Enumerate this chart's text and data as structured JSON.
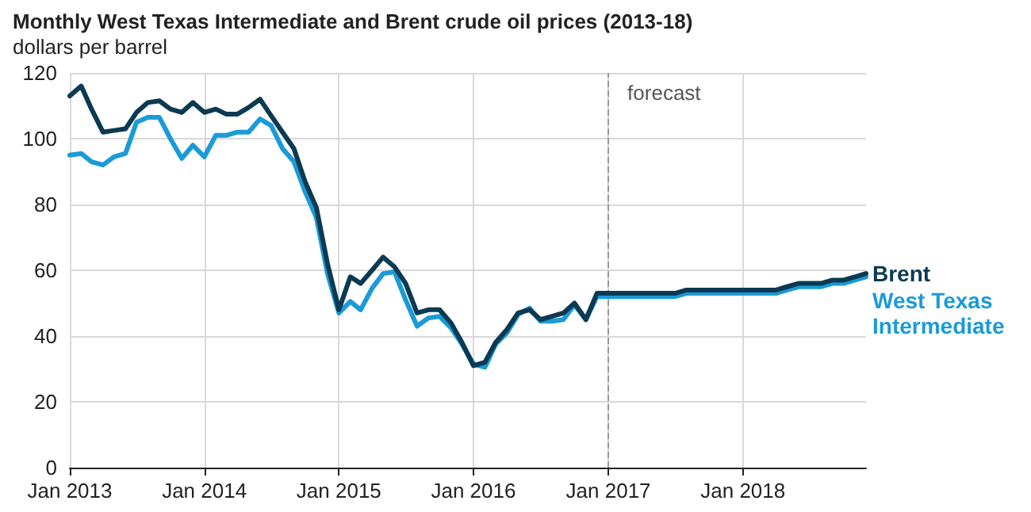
{
  "chart_data": {
    "type": "line",
    "title": "Monthly West Texas Intermediate and Brent crude oil prices (2013-18)",
    "subtitle": "dollars per barrel",
    "x": [
      "2013-01",
      "2013-02",
      "2013-03",
      "2013-04",
      "2013-05",
      "2013-06",
      "2013-07",
      "2013-08",
      "2013-09",
      "2013-10",
      "2013-11",
      "2013-12",
      "2014-01",
      "2014-02",
      "2014-03",
      "2014-04",
      "2014-05",
      "2014-06",
      "2014-07",
      "2014-08",
      "2014-09",
      "2014-10",
      "2014-11",
      "2014-12",
      "2015-01",
      "2015-02",
      "2015-03",
      "2015-04",
      "2015-05",
      "2015-06",
      "2015-07",
      "2015-08",
      "2015-09",
      "2015-10",
      "2015-11",
      "2015-12",
      "2016-01",
      "2016-02",
      "2016-03",
      "2016-04",
      "2016-05",
      "2016-06",
      "2016-07",
      "2016-08",
      "2016-09",
      "2016-10",
      "2016-11",
      "2016-12",
      "2017-01",
      "2017-02",
      "2017-03",
      "2017-04",
      "2017-05",
      "2017-06",
      "2017-07",
      "2017-08",
      "2017-09",
      "2017-10",
      "2017-11",
      "2017-12",
      "2018-01",
      "2018-02",
      "2018-03",
      "2018-04",
      "2018-05",
      "2018-06",
      "2018-07",
      "2018-08",
      "2018-09",
      "2018-10",
      "2018-11",
      "2018-12"
    ],
    "series": [
      {
        "name": "Brent",
        "color": "#0b3a52",
        "values": [
          113,
          116,
          109,
          102,
          102.5,
          103,
          108,
          111,
          111.5,
          109,
          108,
          111,
          108,
          109,
          107.5,
          107.5,
          109.5,
          112,
          107,
          102,
          97,
          87,
          79,
          62,
          48,
          58,
          56,
          60,
          64,
          61,
          56,
          47,
          48,
          48,
          44,
          38,
          31,
          32,
          38,
          42,
          47,
          48,
          45,
          46,
          47,
          50,
          45,
          53,
          53,
          53,
          53,
          53,
          53,
          53,
          53,
          54,
          54,
          54,
          54,
          54,
          54,
          54,
          54,
          54,
          55,
          56,
          56,
          56,
          57,
          57,
          58,
          59
        ]
      },
      {
        "name": "West Texas Intermediate",
        "color": "#1a9bd7",
        "values": [
          95,
          95.5,
          93,
          92,
          94.5,
          95.5,
          105,
          106.5,
          106.5,
          100,
          94,
          98,
          94.5,
          101,
          101,
          102,
          102,
          106,
          104,
          97,
          93,
          84,
          76,
          59,
          47,
          50.5,
          48,
          54.5,
          59,
          59.5,
          51,
          43,
          45.5,
          46,
          42.5,
          37.5,
          31.5,
          30.5,
          37.5,
          41,
          46.5,
          48.5,
          44.5,
          44.5,
          45,
          49.5,
          45,
          52,
          52,
          52,
          52,
          52,
          52,
          52,
          52,
          53,
          53,
          53,
          53,
          53,
          53,
          53,
          53,
          53,
          54,
          55,
          55,
          55,
          56,
          56,
          57,
          58
        ]
      }
    ],
    "xlim": [
      "2013-01",
      "2018-12"
    ],
    "xticks": [
      {
        "value": "2013-01",
        "label": "Jan 2013"
      },
      {
        "value": "2014-01",
        "label": "Jan 2014"
      },
      {
        "value": "2015-01",
        "label": "Jan 2015"
      },
      {
        "value": "2016-01",
        "label": "Jan 2016"
      },
      {
        "value": "2017-01",
        "label": "Jan 2017"
      },
      {
        "value": "2018-01",
        "label": "Jan 2018"
      }
    ],
    "ylim": [
      0,
      120
    ],
    "yticks": [
      0,
      20,
      40,
      60,
      80,
      100,
      120
    ],
    "ref_lines": [
      {
        "axis": "x",
        "value": "2017-01",
        "label": "forecast",
        "color": "#999999",
        "line_style": "dashed"
      }
    ],
    "grid": true,
    "legend": "right",
    "marker": "none",
    "line_style": "solid"
  }
}
